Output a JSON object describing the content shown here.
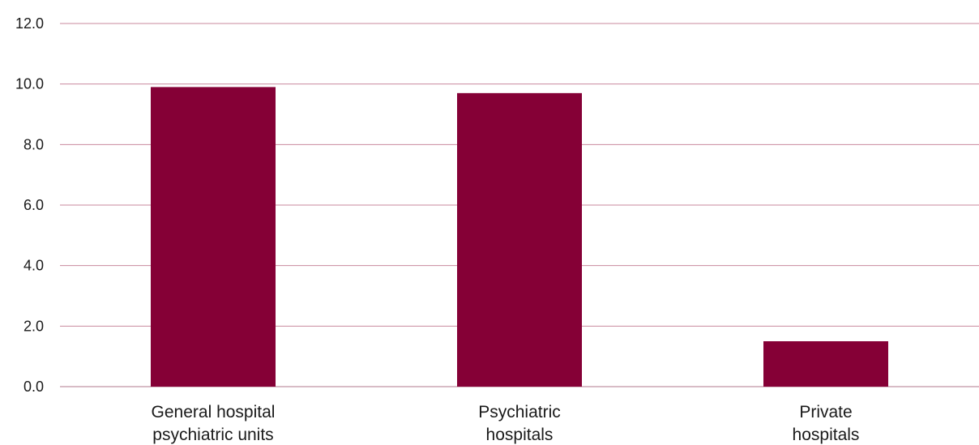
{
  "chart_data": {
    "type": "bar",
    "categories": [
      [
        "General hospital",
        "psychiatric units"
      ],
      [
        "Psychiatric",
        "hospitals"
      ],
      [
        "Private",
        "hospitals"
      ]
    ],
    "values": [
      9.9,
      9.7,
      1.5
    ],
    "y_ticks": [
      "0.0",
      "2.0",
      "4.0",
      "6.0",
      "8.0",
      "10.0",
      "12.0"
    ],
    "ylim": [
      0,
      12
    ],
    "grid": true,
    "legend": "none",
    "colors": {
      "bar": "#850036",
      "grid": "#c98a9e",
      "text": "#1a1a1a"
    }
  }
}
